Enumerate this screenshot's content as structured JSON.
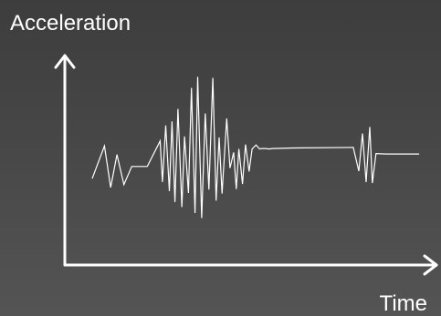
{
  "chart_data": {
    "type": "line",
    "title": "",
    "xlabel": "Time",
    "ylabel": "Acceleration",
    "xlim": [
      0,
      100
    ],
    "ylim": [
      -100,
      100
    ],
    "grid": false,
    "legend": "none",
    "colors": {
      "background": "#474747",
      "axis": "#ffffff",
      "line": "#ffffff",
      "text": "#ffffff"
    },
    "series": [
      {
        "x": [
          0,
          3.7,
          5.6,
          7.5,
          9.6,
          12,
          16.7,
          20.6,
          21.3,
          22.3,
          23.4,
          24.2,
          25.1,
          26,
          27.2,
          28,
          29.2,
          30.1,
          31.2,
          32,
          33.2,
          34.3,
          35.4,
          36.6,
          37.6,
          38.5,
          39.4,
          40.8,
          41.8,
          42.9,
          43.7,
          44.5,
          45.6,
          46.5,
          47.6,
          48.5,
          49.7,
          50.8,
          51.4,
          52.6,
          53.8,
          54.5,
          60.9,
          79.2,
          80.9,
          82,
          83.1,
          84.2,
          85,
          86.1,
          89.2,
          99.2
        ],
        "y": [
          -31,
          34,
          -49,
          17,
          -43,
          -7,
          -7,
          44,
          -38,
          75,
          -56,
          83,
          -78,
          108,
          -88,
          53,
          -60,
          150,
          -100,
          172,
          -110,
          99,
          -53,
          170,
          -75,
          51,
          -61,
          89,
          -10,
          21,
          -52,
          28,
          -42,
          37,
          -17,
          28,
          36,
          28,
          29,
          29,
          28,
          29,
          30,
          31,
          -16,
          59,
          -38,
          72,
          -40,
          19,
          18,
          18
        ]
      }
    ]
  }
}
